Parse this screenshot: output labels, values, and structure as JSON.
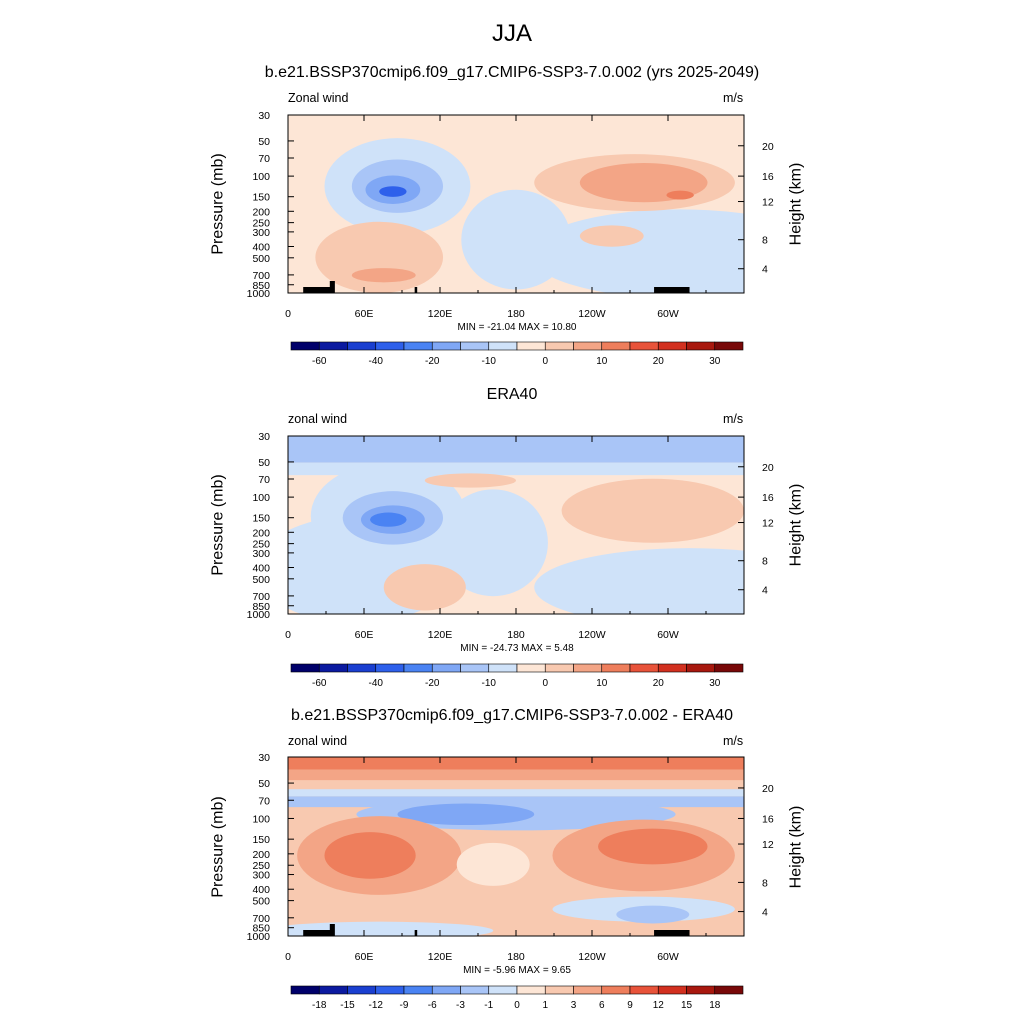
{
  "main_title": "JJA",
  "colors": {
    "levels_abs": [
      "#00006a",
      "#0b1aa0",
      "#1a3fd0",
      "#2e60eb",
      "#4a83f3",
      "#7fa7f5",
      "#a9c5f7",
      "#cfe2f9",
      "#fde6d6",
      "#f8c9b0",
      "#f3a586",
      "#ee7e5c",
      "#e8533a",
      "#d2301f",
      "#a8180e",
      "#780808"
    ],
    "levels_diff": [
      "#00006a",
      "#0b1aa0",
      "#1a3fd0",
      "#2e60eb",
      "#4a83f3",
      "#7fa7f5",
      "#a9c5f7",
      "#cfe2f9",
      "#fde6d6",
      "#f8c9b0",
      "#f3a586",
      "#ee7e5c",
      "#e8533a",
      "#d2301f",
      "#a8180e",
      "#780808"
    ]
  },
  "panels": [
    {
      "title": "b.e21.BSSP370cmip6.f09_g17.CMIP6-SSP3-7.0.002 (yrs 2025-2049)",
      "left_label": "Zonal wind",
      "right_label": "m/s",
      "ylabel": "Pressure (mb)",
      "ylabel_right": "Height (km)",
      "minmax": "MIN = -21.04  MAX =  10.80",
      "colorbar_labels": [
        "-60",
        "-40",
        "-20",
        "-10",
        "0",
        "10",
        "20",
        "30"
      ]
    },
    {
      "title": "ERA40",
      "left_label": "zonal wind",
      "right_label": "m/s",
      "ylabel": "Pressure (mb)",
      "ylabel_right": "Height (km)",
      "minmax": "MIN = -24.73  MAX =   5.48",
      "colorbar_labels": [
        "-60",
        "-40",
        "-20",
        "-10",
        "0",
        "10",
        "20",
        "30"
      ]
    },
    {
      "title": "b.e21.BSSP370cmip6.f09_g17.CMIP6-SSP3-7.0.002 - ERA40",
      "left_label": "zonal wind",
      "right_label": "m/s",
      "ylabel": "Pressure (mb)",
      "ylabel_right": "Height (km)",
      "minmax": "MIN =  -5.96  MAX =   9.65",
      "colorbar_labels": [
        "-18",
        "-15",
        "-12",
        "-9",
        "-6",
        "-3",
        "-1",
        "0",
        "1",
        "3",
        "6",
        "9",
        "12",
        "15",
        "18"
      ]
    }
  ],
  "chart_data": [
    {
      "type": "heatmap",
      "title": "b.e21.BSSP370cmip6.f09_g17.CMIP6-SSP3-7.0.002 (yrs 2025-2049)",
      "xlabel": "",
      "ylabel": "Pressure (mb)",
      "ylabel_right": "Height (km)",
      "x_ticks": [
        "0",
        "60E",
        "120E",
        "180",
        "120W",
        "60W"
      ],
      "y_ticks": [
        "30",
        "50",
        "70",
        "100",
        "150",
        "200",
        "250",
        "300",
        "400",
        "500",
        "700",
        "850",
        "1000"
      ],
      "y_right_ticks": [
        "20",
        "16",
        "12",
        "8",
        "4"
      ],
      "min": -21.04,
      "max": 10.8,
      "blobs": [
        {
          "lon": 80,
          "p": 160,
          "value": -21
        },
        {
          "lon": 75,
          "p": 150,
          "value": -12
        },
        {
          "lon": 290,
          "p": 130,
          "value": 10.8
        },
        {
          "lon": 270,
          "p": 140,
          "value": 7
        },
        {
          "lon": 100,
          "p": 650,
          "value": 6
        }
      ]
    },
    {
      "type": "heatmap",
      "title": "ERA40",
      "ylabel": "Pressure (mb)",
      "ylabel_right": "Height (km)",
      "x_ticks": [
        "0",
        "60E",
        "120E",
        "180",
        "120W",
        "60W"
      ],
      "y_ticks": [
        "30",
        "50",
        "70",
        "100",
        "150",
        "200",
        "250",
        "300",
        "400",
        "500",
        "700",
        "850",
        "1000"
      ],
      "y_right_ticks": [
        "20",
        "16",
        "12",
        "8",
        "4"
      ],
      "min": -24.73,
      "max": 5.48
    },
    {
      "type": "heatmap",
      "title": "b.e21.BSSP370cmip6.f09_g17.CMIP6-SSP3-7.0.002 - ERA40",
      "ylabel": "Pressure (mb)",
      "ylabel_right": "Height (km)",
      "x_ticks": [
        "0",
        "60E",
        "120E",
        "180",
        "120W",
        "60W"
      ],
      "y_ticks": [
        "30",
        "50",
        "70",
        "100",
        "150",
        "200",
        "250",
        "300",
        "400",
        "500",
        "700",
        "850",
        "1000"
      ],
      "y_right_ticks": [
        "20",
        "16",
        "12",
        "8",
        "4"
      ],
      "min": -5.96,
      "max": 9.65
    }
  ]
}
